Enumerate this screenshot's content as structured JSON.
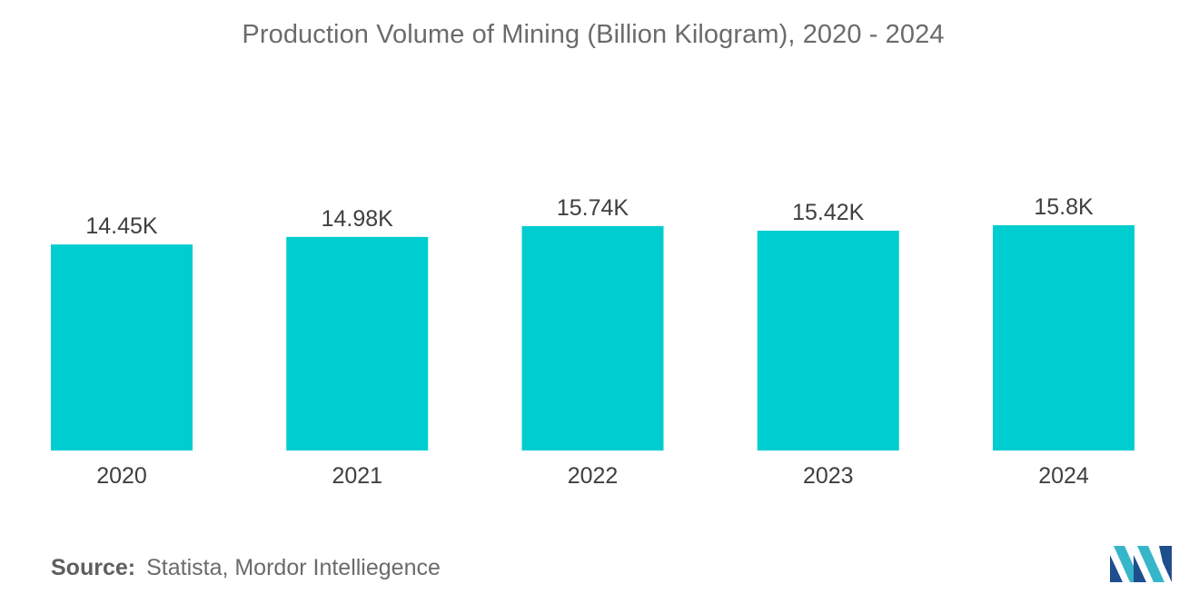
{
  "title": "Production Volume of Mining (Billion Kilogram), 2020 - 2024",
  "source": {
    "label": "Source:",
    "text": "Statista, Mordor Intelliegence"
  },
  "logo": {
    "icon": "mordor-intelligence-logo-icon"
  },
  "colors": {
    "bar": "#00cdd0",
    "text": "#3f3f3f",
    "logo_dark": "#1f4e8c",
    "logo_light": "#36b6c8"
  },
  "chart_data": {
    "type": "bar",
    "title": "Production Volume of Mining (Billion Kilogram), 2020 - 2024",
    "categories": [
      "2020",
      "2021",
      "2022",
      "2023",
      "2024"
    ],
    "values": [
      14450,
      14980,
      15740,
      15420,
      15800
    ],
    "labels": [
      "14.45K",
      "14.98K",
      "15.74K",
      "15.42K",
      "15.8K"
    ],
    "xlabel": "",
    "ylabel": "",
    "ylim": [
      0,
      15800
    ],
    "grid": false,
    "legend": "none"
  }
}
